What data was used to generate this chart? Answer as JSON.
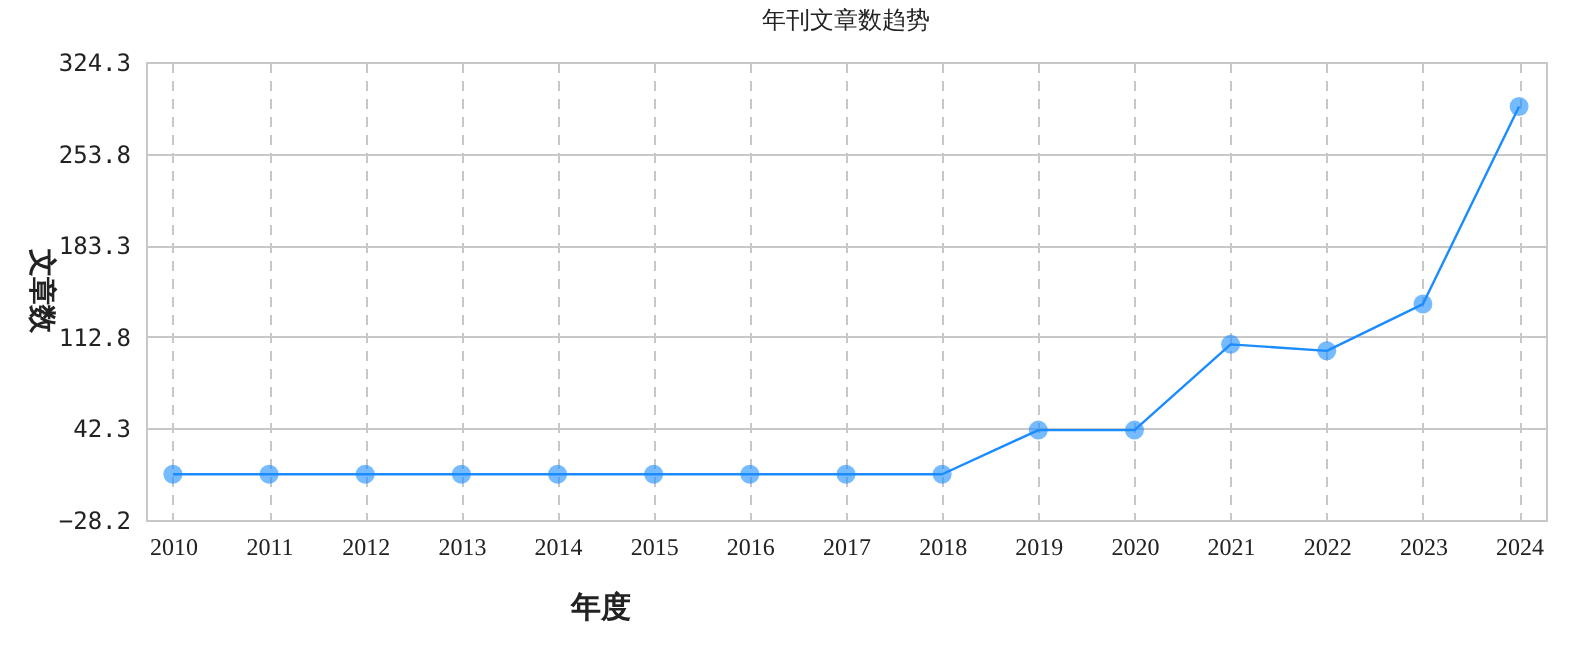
{
  "chart_data": {
    "type": "line",
    "title": "年刊文章数趋势",
    "xlabel": "年度",
    "ylabel": "文章数",
    "categories": [
      "2010",
      "2011",
      "2012",
      "2013",
      "2014",
      "2015",
      "2016",
      "2017",
      "2018",
      "2019",
      "2020",
      "2021",
      "2022",
      "2023",
      "2024"
    ],
    "series": [
      {
        "color": "#1a8cff",
        "values": [
          7,
          7,
          7,
          7,
          7,
          7,
          7,
          7,
          7,
          41,
          41,
          107,
          102,
          138,
          290
        ]
      }
    ],
    "ylim": [
      -28.2,
      324.3
    ],
    "yticks": [
      -28.2,
      42.3,
      112.8,
      183.3,
      253.8,
      324.3
    ],
    "grid": true,
    "marker": "circle",
    "line_style": "solid"
  }
}
